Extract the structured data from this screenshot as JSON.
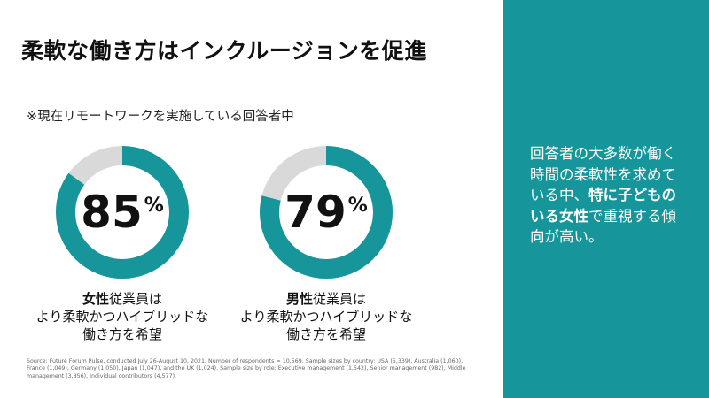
{
  "slide": {
    "title": "柔軟な働き方はインクルージョンを促進",
    "note": "※現在リモートワークを実施している回答者中",
    "source": "Source: Future Forum Pulse, conducted July 26-August 10, 2021. Number of respondents = 10,569. Sample sizes by country: USA (5,339), Australia (1,060), France (1,049), Germany (1,050), Japan (1,047), and the UK (1,024). Sample size by role: Executive management (1,542), Senior management (982), Middle management (3,856), Individual contributors (4,577)."
  },
  "chart_data": [
    {
      "type": "pie",
      "values": [
        85,
        15
      ],
      "value_label": "85",
      "unit": "%",
      "colors": [
        "#16969b",
        "#d9d9d9"
      ],
      "caption": {
        "bold": "女性",
        "line1_rest": "従業員は",
        "line2": "より柔軟かつハイブリッドな",
        "line3": "働き方を希望"
      }
    },
    {
      "type": "pie",
      "values": [
        79,
        21
      ],
      "value_label": "79",
      "unit": "%",
      "colors": [
        "#16969b",
        "#d9d9d9"
      ],
      "caption": {
        "bold": "男性",
        "line1_rest": "従業員は",
        "line2": "より柔軟かつハイブリッドな",
        "line3": "働き方を希望"
      }
    }
  ],
  "panel": {
    "background": "#16969b",
    "text_normal_1": "回答者の大多数が働く時間の柔軟性を求めている中、",
    "text_bold": "特に子どものいる女性",
    "text_normal_2": "で重視する傾向が高い。"
  }
}
